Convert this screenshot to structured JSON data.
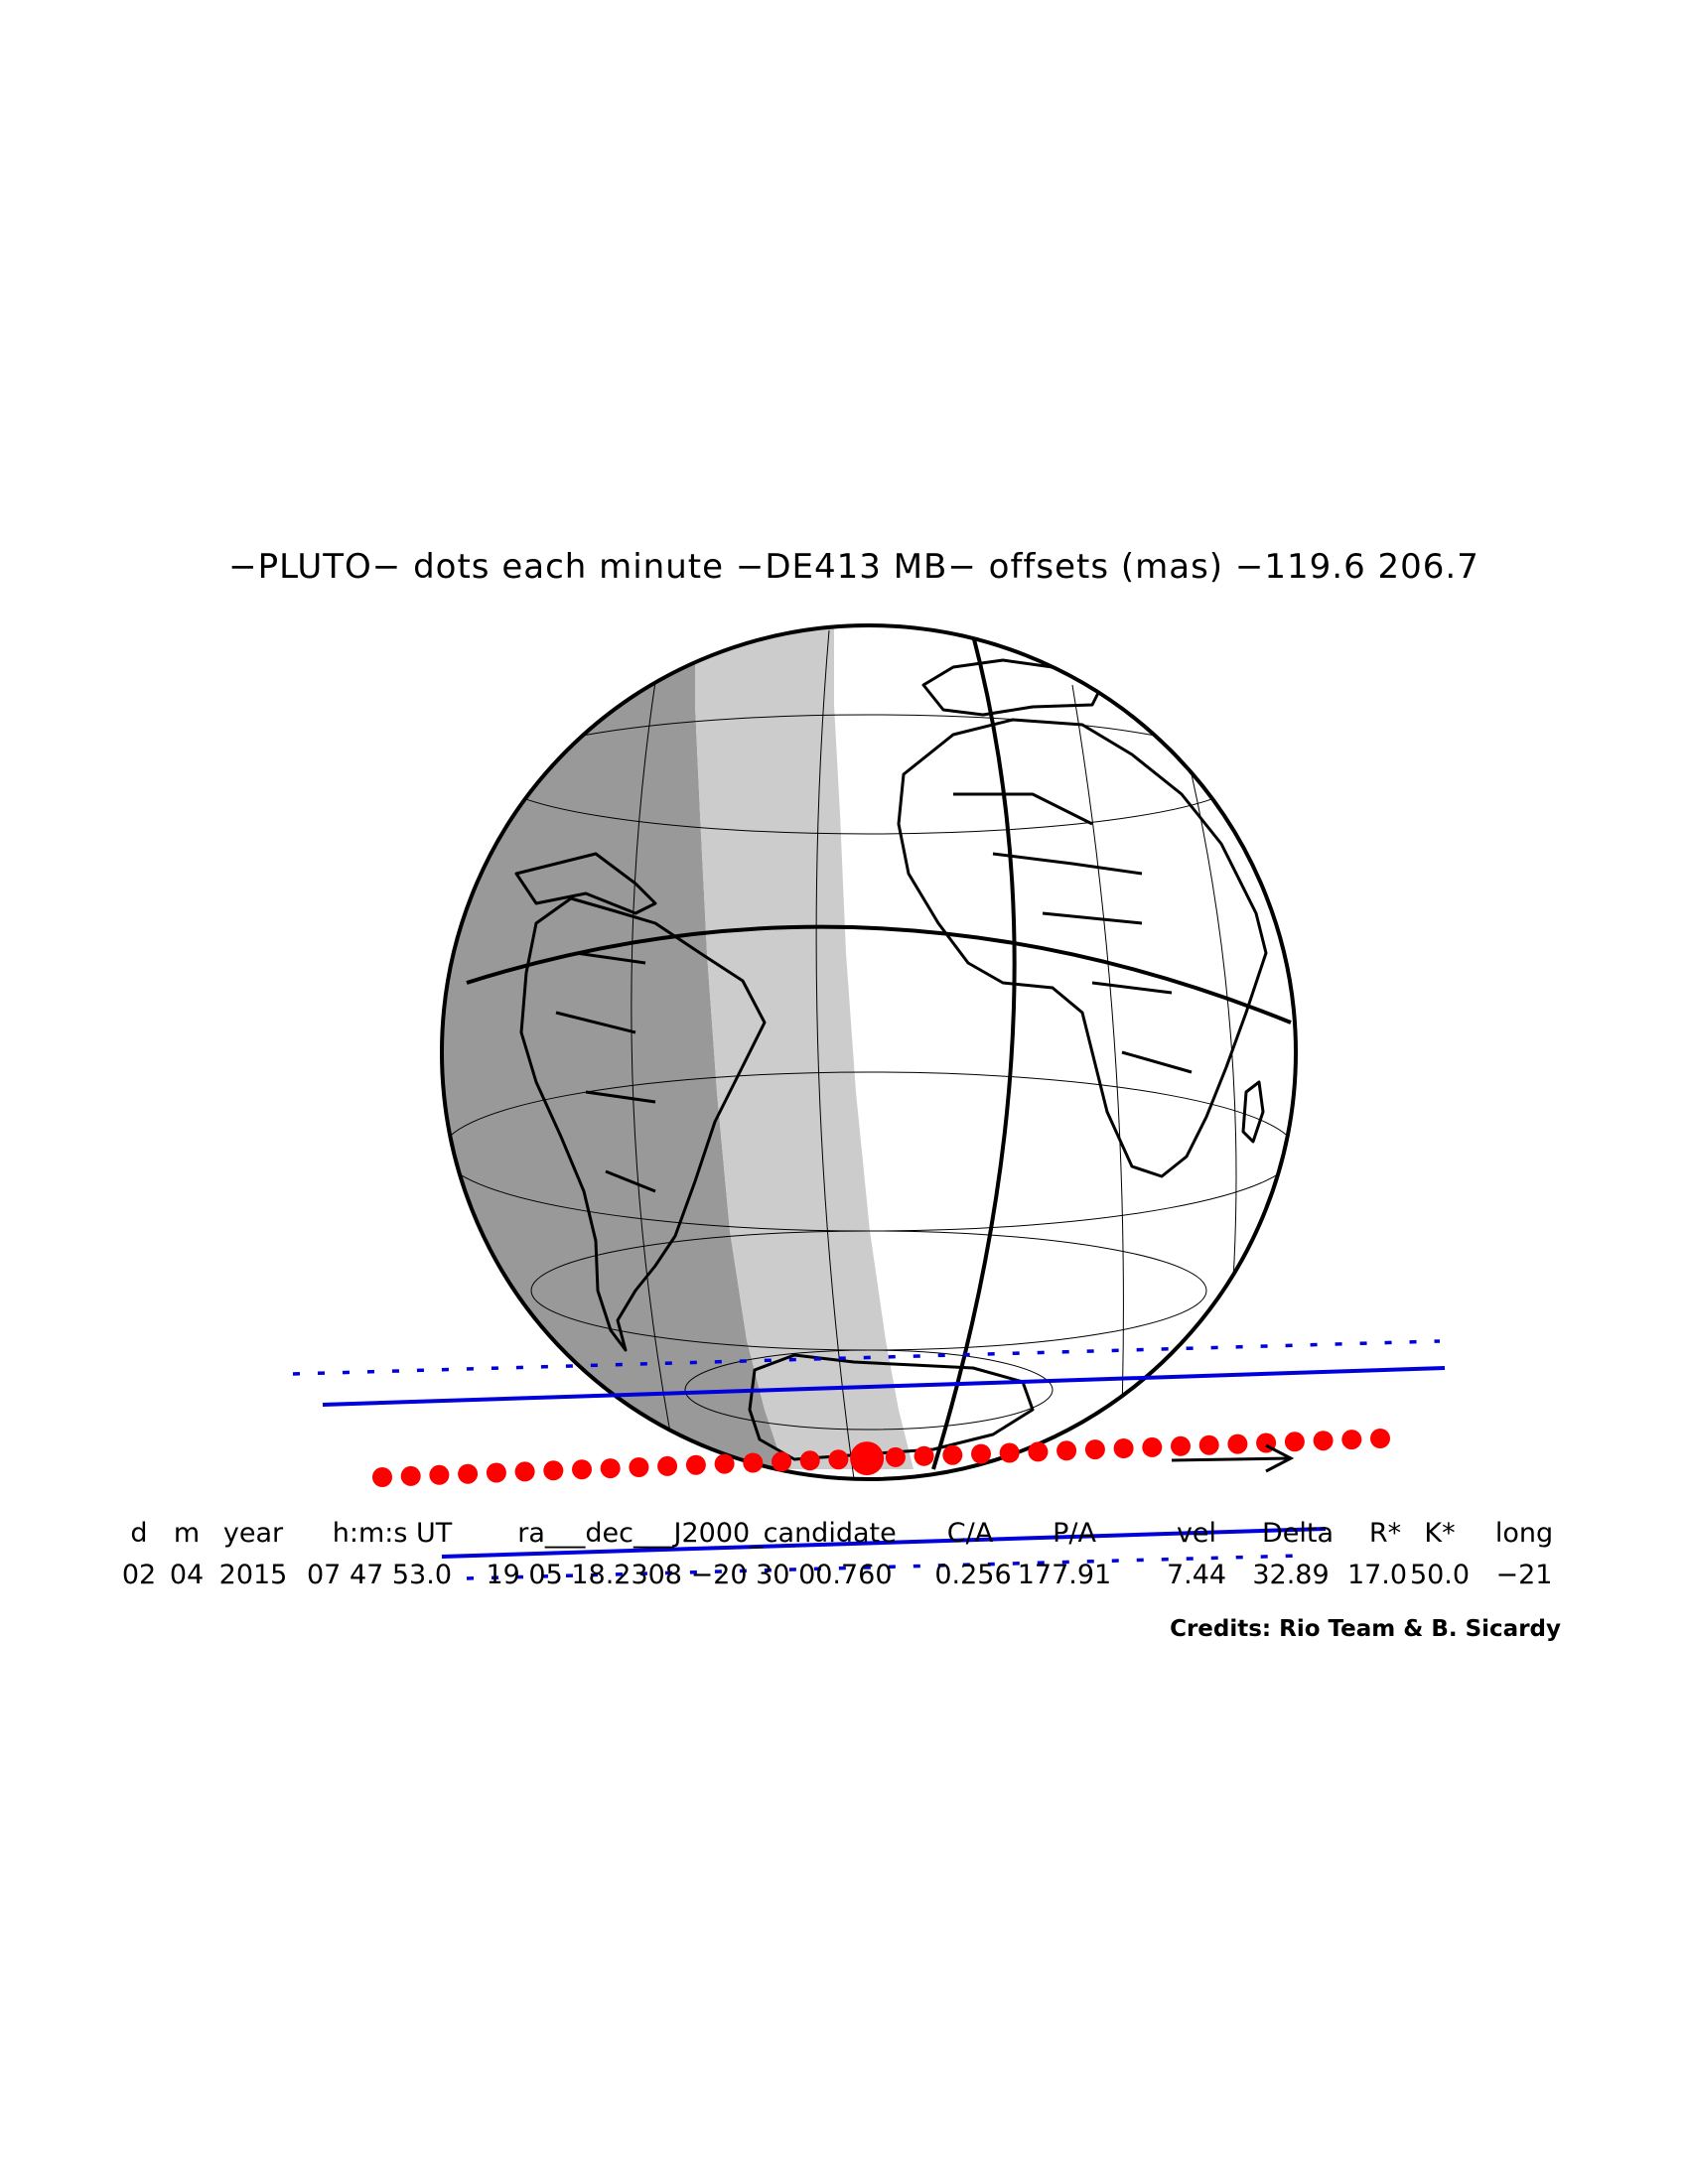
{
  "title": "−PLUTO− dots each minute −DE413 MB− offsets (mas) −119.6   206.7",
  "table": {
    "headers": [
      "d",
      "m",
      "year",
      "h:m:s UT",
      "ra___dec___J2000_candidate",
      "C/A",
      "P/A",
      "vel",
      "Delta",
      "R*",
      "K*",
      "long"
    ],
    "values": [
      "02",
      "04",
      "2015",
      "07 47 53.0",
      "19 05 18.2308 −20 30 00.760",
      "0.256",
      "177.91",
      "7.44",
      "32.89",
      "17.0",
      "50.0",
      "−21"
    ]
  },
  "credits": "Credits: Rio Team & B. Sicardy",
  "colors": {
    "night": "#999999",
    "twilight": "#cccccc",
    "day": "#ffffff",
    "path_lines": "#0000dd",
    "dots": "#ff0000",
    "outline": "#000000"
  },
  "icons": [
    "arrow-icon"
  ]
}
